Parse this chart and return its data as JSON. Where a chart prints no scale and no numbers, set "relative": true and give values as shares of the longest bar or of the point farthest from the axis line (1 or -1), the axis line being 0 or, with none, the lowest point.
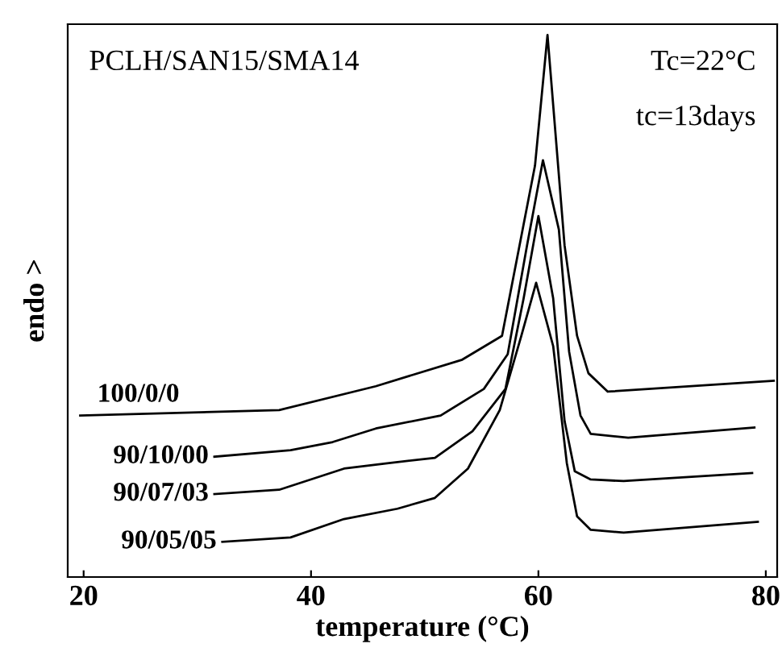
{
  "chart_data": {
    "type": "line",
    "relative": true,
    "xlabel": "temperature (°C)",
    "ylabel": "endo >",
    "annotations": [
      "PCLH/SAN15/SMA14",
      "Tc=22°C",
      "tc=13days"
    ],
    "xlim": [
      18.6,
      81
    ],
    "xticks": [
      20,
      40,
      60,
      80
    ],
    "grid": false,
    "legend": false,
    "tick_labels": "x",
    "marker": "none",
    "line_style": "solid",
    "series": [
      {
        "name": "100/0/0",
        "color": "#000000",
        "x": [
          19.7,
          37.2,
          45.7,
          53.3,
          56.8,
          59.7,
          60.8,
          62.3,
          63.4,
          64.4,
          66.1,
          80.7
        ],
        "values": [
          0.298,
          0.308,
          0.352,
          0.401,
          0.445,
          0.759,
          1,
          0.612,
          0.445,
          0.376,
          0.342,
          0.362
        ]
      },
      {
        "name": "90/10/00",
        "color": "#000000",
        "x": [
          31.5,
          38.2,
          41.9,
          45.7,
          51.4,
          55.2,
          57.3,
          59.0,
          60.4,
          61.8,
          62.7,
          63.7,
          64.6,
          67.9,
          79.0
        ],
        "values": [
          0.222,
          0.234,
          0.249,
          0.274,
          0.298,
          0.347,
          0.411,
          0.612,
          0.769,
          0.641,
          0.416,
          0.298,
          0.264,
          0.257,
          0.276
        ]
      },
      {
        "name": "90/07/03",
        "color": "#000000",
        "x": [
          31.5,
          37.2,
          42.9,
          46.7,
          50.9,
          54.2,
          57.1,
          58.7,
          60.0,
          61.3,
          62.3,
          63.2,
          64.6,
          67.5,
          78.8
        ],
        "values": [
          0.153,
          0.161,
          0.2,
          0.21,
          0.22,
          0.269,
          0.347,
          0.514,
          0.666,
          0.514,
          0.288,
          0.195,
          0.18,
          0.177,
          0.192
        ]
      },
      {
        "name": "90/05/05",
        "color": "#000000",
        "x": [
          32.2,
          38.2,
          42.9,
          47.6,
          50.9,
          53.8,
          56.6,
          58.5,
          59.8,
          61.3,
          62.5,
          63.4,
          64.6,
          67.5,
          79.3
        ],
        "values": [
          0.065,
          0.073,
          0.107,
          0.126,
          0.146,
          0.2,
          0.308,
          0.445,
          0.543,
          0.426,
          0.21,
          0.112,
          0.087,
          0.082,
          0.102
        ]
      }
    ]
  }
}
